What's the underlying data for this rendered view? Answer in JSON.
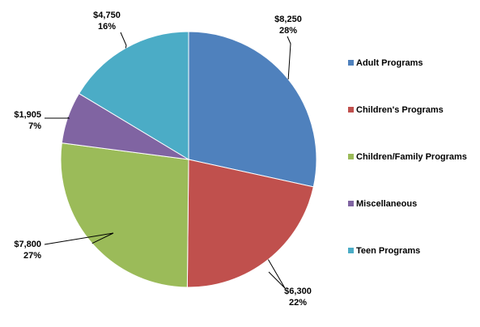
{
  "chart_data": {
    "type": "pie",
    "title": "",
    "categories": [
      "Adult Programs",
      "Children's Programs",
      "Children/Family Programs",
      "Miscellaneous",
      "Teen Programs"
    ],
    "values": [
      8250,
      6300,
      7800,
      1905,
      4750
    ],
    "value_labels": [
      "$8,250",
      "$6,300",
      "$7,800",
      "$1,905",
      "$4,750"
    ],
    "percent_labels": [
      "28%",
      "22%",
      "27%",
      "7%",
      "16%"
    ],
    "colors": [
      "#4F81BD",
      "#C0504D",
      "#9BBB59",
      "#8064A2",
      "#4BACC6"
    ],
    "legend_position": "right",
    "start_angle": "12 o'clock",
    "direction": "clockwise"
  }
}
